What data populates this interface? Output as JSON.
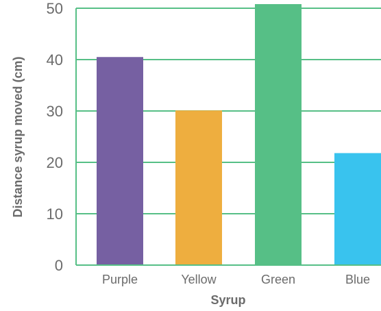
{
  "chart_data": {
    "type": "bar",
    "categories": [
      "Purple",
      "Yellow",
      "Green",
      "Blue"
    ],
    "values": [
      40.5,
      30.1,
      50.8,
      21.8
    ],
    "colors": [
      "#7660a2",
      "#eeae3f",
      "#56bf86",
      "#39c3ee"
    ],
    "xlabel": "Syrup",
    "ylabel": "Distance syrup moved (cm)",
    "ylim": [
      0,
      50
    ],
    "yticks": [
      0,
      10,
      20,
      30,
      40,
      50
    ],
    "grid": true,
    "grid_color": "#56bf86",
    "axis_color": "#56bf86"
  }
}
